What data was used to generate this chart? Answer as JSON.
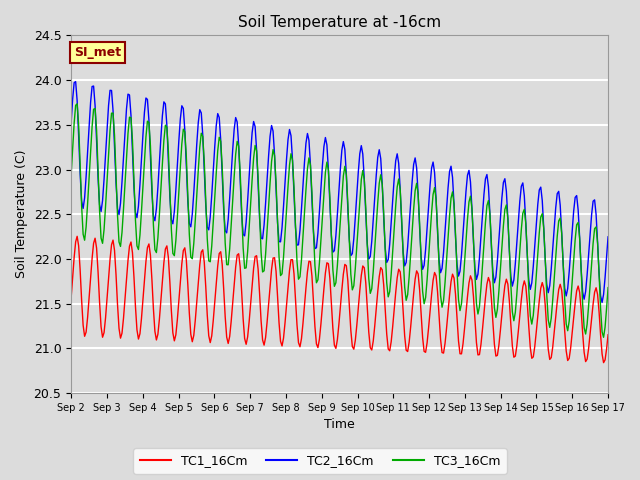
{
  "title": "Soil Temperature at -16cm",
  "xlabel": "Time",
  "ylabel": "Soil Temperature (C)",
  "ylim": [
    20.5,
    24.5
  ],
  "annotation": "SI_met",
  "annotation_color": "#8B0000",
  "annotation_bg": "#FFFF99",
  "bg_color": "#DCDCDC",
  "legend_labels": [
    "TC1_16Cm",
    "TC2_16Cm",
    "TC3_16Cm"
  ],
  "colors": [
    "#FF0000",
    "#0000FF",
    "#00AA00"
  ],
  "tick_days": [
    2,
    3,
    4,
    5,
    6,
    7,
    8,
    9,
    10,
    11,
    12,
    13,
    14,
    15,
    16,
    17
  ],
  "figsize": [
    6.4,
    4.8
  ],
  "dpi": 100
}
